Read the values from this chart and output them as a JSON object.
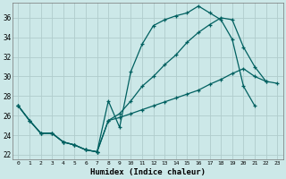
{
  "xlabel": "Humidex (Indice chaleur)",
  "bg_color": "#cce8e8",
  "grid_color": "#b0cccc",
  "line_color": "#006060",
  "xlim": [
    -0.5,
    23.5
  ],
  "ylim": [
    21.5,
    37.5
  ],
  "yticks": [
    22,
    24,
    26,
    28,
    30,
    32,
    34,
    36
  ],
  "xticks": [
    0,
    1,
    2,
    3,
    4,
    5,
    6,
    7,
    8,
    9,
    10,
    11,
    12,
    13,
    14,
    15,
    16,
    17,
    18,
    19,
    20,
    21,
    22,
    23
  ],
  "line1_x": [
    0,
    1,
    2,
    3,
    4,
    5,
    6,
    7,
    8,
    9,
    10,
    11,
    12,
    13,
    14,
    15,
    16,
    17,
    18,
    19,
    20,
    21
  ],
  "line1_y": [
    27.0,
    25.5,
    24.2,
    24.2,
    23.3,
    23.0,
    22.5,
    22.3,
    27.5,
    24.8,
    30.5,
    33.3,
    35.2,
    35.8,
    36.2,
    36.5,
    37.2,
    36.5,
    35.8,
    33.8,
    29.0,
    27.0
  ],
  "line2_x": [
    0,
    1,
    2,
    3,
    4,
    5,
    6,
    7,
    8,
    9,
    10,
    11,
    12,
    13,
    14,
    15,
    16,
    17,
    18,
    19,
    20,
    21,
    22
  ],
  "line2_y": [
    27.0,
    25.5,
    24.2,
    24.2,
    23.3,
    23.0,
    22.5,
    22.3,
    25.5,
    26.2,
    27.5,
    29.0,
    30.0,
    31.2,
    32.2,
    33.5,
    34.5,
    35.3,
    36.0,
    35.8,
    33.0,
    31.0,
    29.5
  ],
  "line3_x": [
    0,
    1,
    2,
    3,
    4,
    5,
    6,
    7,
    8,
    9,
    10,
    11,
    12,
    13,
    14,
    15,
    16,
    17,
    18,
    19,
    20,
    21,
    22,
    23
  ],
  "line3_y": [
    27.0,
    25.5,
    24.2,
    24.2,
    23.3,
    23.0,
    22.5,
    22.3,
    25.5,
    25.8,
    26.2,
    26.6,
    27.0,
    27.4,
    27.8,
    28.2,
    28.6,
    29.2,
    29.7,
    30.3,
    30.8,
    30.0,
    29.5,
    29.3
  ]
}
